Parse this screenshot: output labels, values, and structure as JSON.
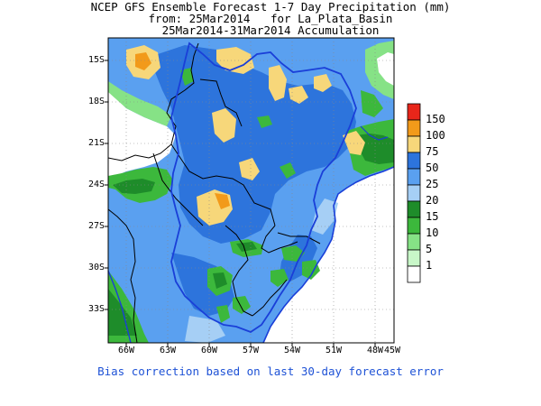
{
  "title": {
    "line1": "NCEP GFS Ensemble Forecast 1-7 Day Precipitation (mm)",
    "line2": "from: 25Mar2014   for La_Plata_Basin",
    "line3": "25Mar2014-31Mar2014 Accumulation"
  },
  "axes": {
    "y_ticks": [
      "15S",
      "18S",
      "21S",
      "24S",
      "27S",
      "30S",
      "33S"
    ],
    "x_ticks": [
      "66W",
      "63W",
      "60W",
      "57W",
      "54W",
      "51W",
      "48W",
      "45W"
    ]
  },
  "legend": {
    "labels": [
      "150",
      "100",
      "75",
      "50",
      "25",
      "20",
      "15",
      "10",
      "5",
      "1"
    ],
    "colors": [
      "#e8261a",
      "#f29a1a",
      "#f7d77a",
      "#2d74dc",
      "#5aa0f0",
      "#a6cff5",
      "#1e8c2a",
      "#3cb83c",
      "#86e286",
      "#c8f7c8",
      "#ffffff"
    ]
  },
  "footer": "Bias correction based on last 30-day forecast error"
}
